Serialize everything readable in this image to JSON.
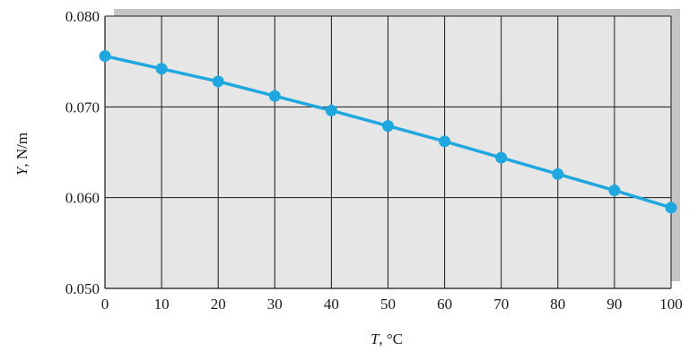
{
  "chart_data": {
    "type": "line",
    "xlabel": {
      "symbol": "T",
      "unit": ", °C"
    },
    "ylabel": {
      "symbol": "Y",
      "unit": ", N/m"
    },
    "xlim": [
      0,
      100
    ],
    "ylim": [
      0.05,
      0.08
    ],
    "x_ticks": [
      0,
      10,
      20,
      30,
      40,
      50,
      60,
      70,
      80,
      90,
      100
    ],
    "x_tick_labels": [
      "0",
      "10",
      "20",
      "30",
      "40",
      "50",
      "60",
      "70",
      "80",
      "90",
      "100"
    ],
    "y_ticks": [
      0.05,
      0.06,
      0.07,
      0.08
    ],
    "y_tick_labels": [
      "0.050",
      "0.060",
      "0.070",
      "0.080"
    ],
    "grid": true,
    "series": [
      {
        "color": "#1fa8e0",
        "x": [
          0,
          10,
          20,
          30,
          40,
          50,
          60,
          70,
          80,
          90,
          100
        ],
        "y": [
          0.0756,
          0.0742,
          0.0728,
          0.0712,
          0.0696,
          0.0679,
          0.0662,
          0.0644,
          0.0626,
          0.0608,
          0.0589
        ]
      }
    ],
    "colors": {
      "plot_bg": "#e6e6e6",
      "shadow": "#c4c4c4",
      "grid": "#1a1a1a"
    }
  }
}
